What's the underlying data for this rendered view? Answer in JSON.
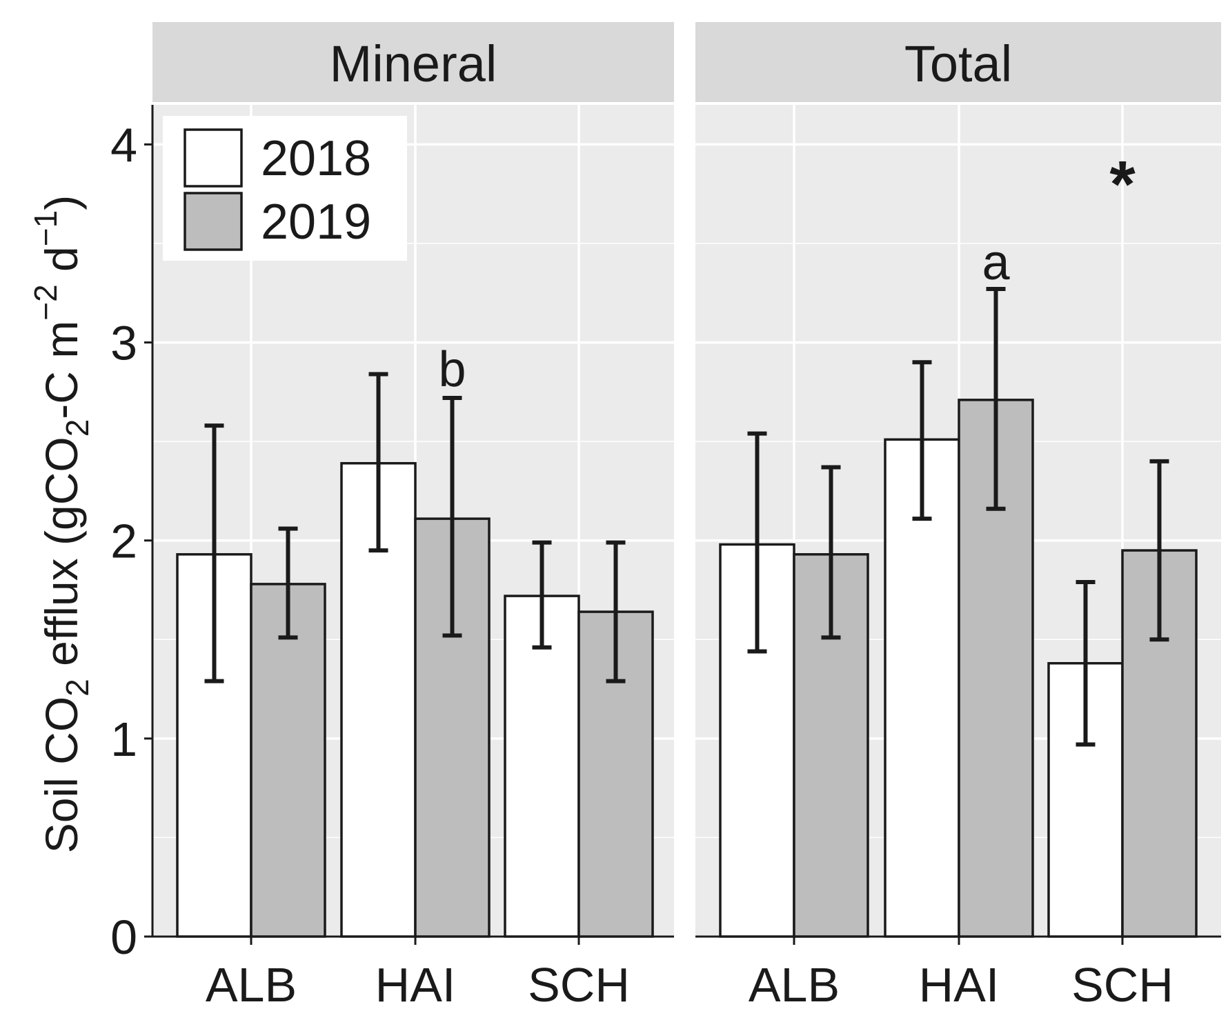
{
  "chart_data": {
    "type": "bar",
    "ylabel": {
      "prefix": "Soil CO",
      "sub1": "2",
      "mid": " efflux (gCO",
      "sub2": "2",
      "mid2": "-C m",
      "sup1": "−2",
      "mid3": " d",
      "sup2": "−1",
      "suffix": ")"
    },
    "ylim": [
      0,
      4.2
    ],
    "yticks": [
      "0",
      "1",
      "2",
      "3",
      "4"
    ],
    "categories": [
      "ALB",
      "HAI",
      "SCH"
    ],
    "legend": {
      "position": "top-left",
      "entries": [
        {
          "label": "2018",
          "color": "#ffffff"
        },
        {
          "label": "2019",
          "color": "#bdbdbd"
        }
      ]
    },
    "panels": [
      {
        "title": "Mineral",
        "series": [
          {
            "name": "2018",
            "values": [
              1.93,
              2.39,
              1.72
            ],
            "err_low": [
              1.29,
              1.95,
              1.46
            ],
            "err_high": [
              2.58,
              2.84,
              1.99
            ]
          },
          {
            "name": "2019",
            "values": [
              1.78,
              2.11,
              1.64
            ],
            "err_low": [
              1.51,
              1.52,
              1.29
            ],
            "err_high": [
              2.06,
              2.72,
              1.99
            ]
          }
        ],
        "annotations": [
          {
            "text": "b",
            "category": "HAI",
            "series": "2019",
            "y": 2.87
          }
        ]
      },
      {
        "title": "Total",
        "series": [
          {
            "name": "2018",
            "values": [
              1.98,
              2.51,
              1.38
            ],
            "err_low": [
              1.44,
              2.11,
              0.97
            ],
            "err_high": [
              2.54,
              2.9,
              1.79
            ]
          },
          {
            "name": "2019",
            "values": [
              1.93,
              2.71,
              1.95
            ],
            "err_low": [
              1.51,
              2.16,
              1.5
            ],
            "err_high": [
              2.37,
              3.27,
              2.4
            ]
          }
        ],
        "annotations": [
          {
            "text": "a",
            "category": "HAI",
            "series": "2019",
            "y": 3.41
          },
          {
            "text": "*",
            "category": "SCH",
            "series": "between",
            "y": 3.9
          }
        ]
      }
    ],
    "colors": {
      "panel_bg": "#ebebeb",
      "strip_bg": "#d9d9d9",
      "grid": "#ffffff",
      "bar_2018": "#ffffff",
      "bar_2019": "#bdbdbd",
      "outline": "#1a1a1a"
    }
  }
}
